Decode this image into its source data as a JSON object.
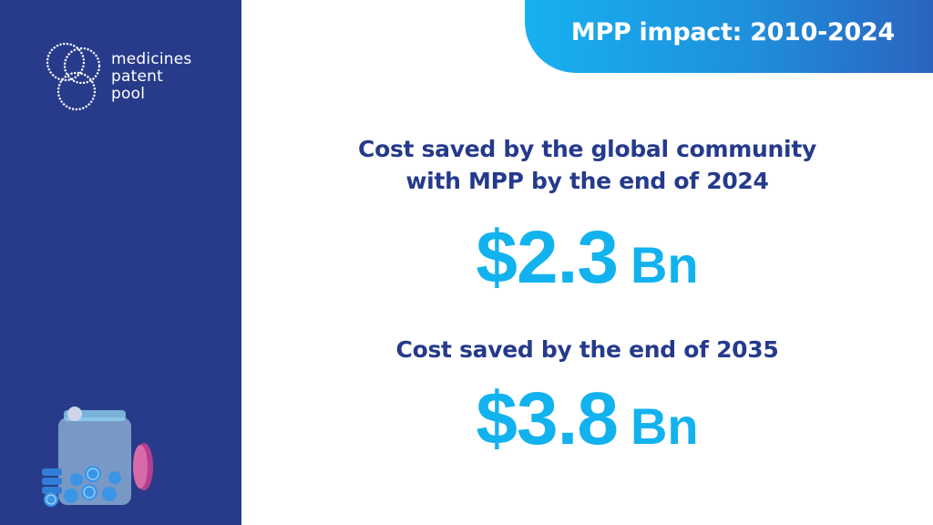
{
  "logo": {
    "lines": [
      "medicines",
      "patent",
      "pool"
    ]
  },
  "header": {
    "banner_title": "MPP impact: 2010-2024"
  },
  "stats": [
    {
      "heading_lines": [
        "Cost saved by the global community",
        "with MPP by the end of 2024"
      ],
      "amount": "$2.3",
      "unit": "Bn"
    },
    {
      "heading_lines": [
        "Cost saved by the end of 2035"
      ],
      "amount": "$3.8",
      "unit": "Bn"
    }
  ],
  "colors": {
    "sidebar": "#283b8a",
    "heading": "#253a8c",
    "figure": "#12b2ee",
    "banner_start": "#17b1f0",
    "banner_end": "#2a63c0"
  },
  "icons": [
    "medicines-patent-pool-logo-icon",
    "coin-jar-icon"
  ]
}
